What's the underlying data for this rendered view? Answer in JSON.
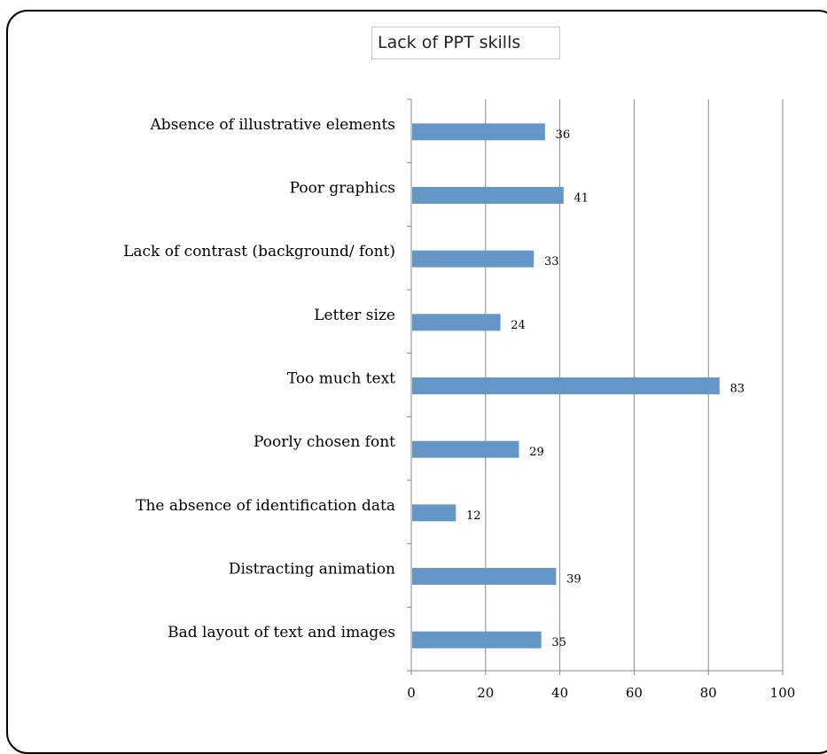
{
  "chart_data": {
    "type": "bar",
    "orientation": "horizontal",
    "title": "Lack of PPT skills",
    "categories": [
      "Absence of illustrative elements",
      "Poor graphics",
      "Lack of contrast (background/ font)",
      "Letter size",
      "Too much text",
      "Poorly chosen font",
      "The absence of identification data",
      "Distracting animation",
      "Bad layout of text and images"
    ],
    "values": [
      36,
      41,
      33,
      24,
      83,
      29,
      12,
      39,
      35
    ],
    "value_labels": [
      "36",
      "41",
      "33",
      "24",
      "83",
      "29",
      "12",
      "39",
      "35"
    ],
    "xlim": [
      0,
      100
    ],
    "x_ticks": [
      0,
      20,
      40,
      60,
      80,
      100
    ],
    "x_tick_labels": [
      "0",
      "20",
      "40",
      "60",
      "80",
      "100"
    ],
    "xlabel": "",
    "ylabel": "",
    "grid": "vertical",
    "legend": "none",
    "bar_color": "#6496c8",
    "grid_color": "#888888"
  }
}
